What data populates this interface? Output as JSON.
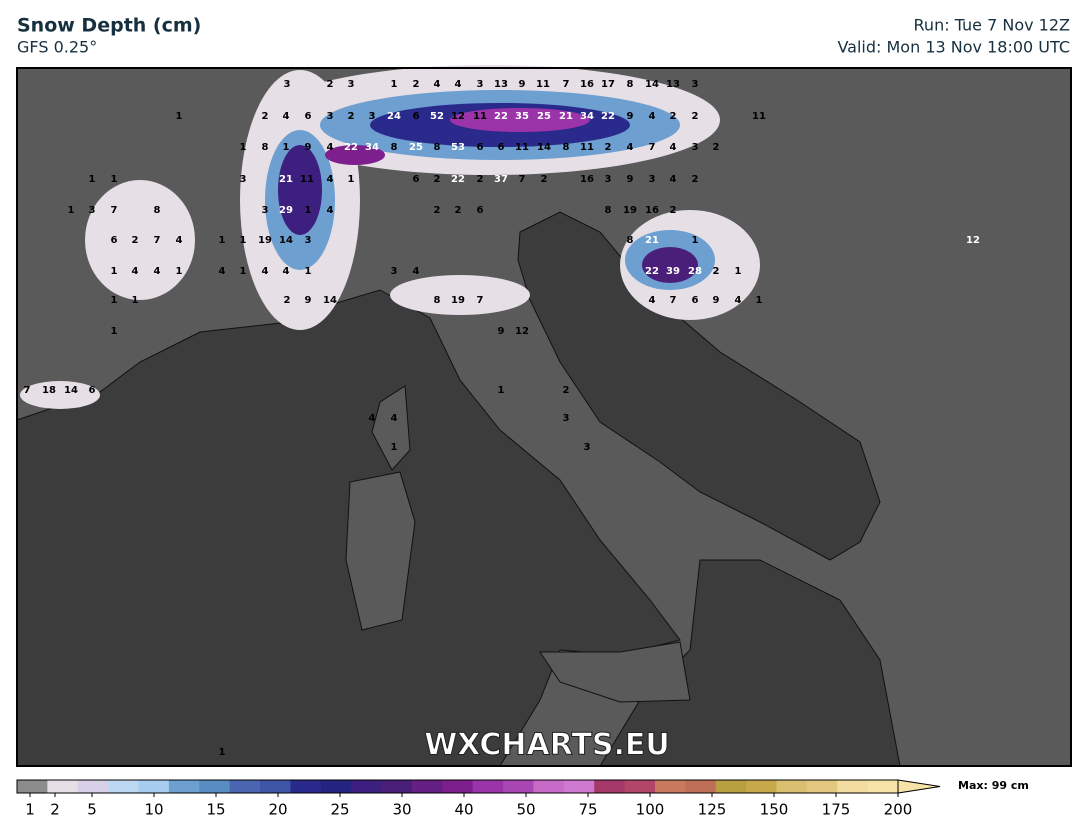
{
  "header": {
    "title": "Snow Depth (cm)",
    "subtitle": "GFS 0.25°",
    "run": "Run: Tue 7 Nov 12Z",
    "valid": "Valid: Mon 13 Nov 18:00 UTC"
  },
  "watermark": "WXCHARTS.EU",
  "map_labels": [
    [
      3,
      2,
      3,
      1,
      2,
      4,
      4,
      3,
      13,
      9,
      11,
      7,
      16,
      17,
      8,
      14,
      13,
      3
    ],
    [
      1,
      2,
      4,
      6,
      3,
      2,
      3,
      24,
      6,
      52,
      12,
      11,
      22,
      35,
      25,
      21,
      34,
      22,
      9,
      4,
      2,
      2,
      11
    ],
    [
      1,
      8,
      1,
      9,
      4,
      22,
      34,
      8,
      25,
      8,
      53,
      6,
      6,
      11,
      14,
      8,
      11,
      2,
      4,
      7,
      4,
      3,
      2
    ],
    [
      1,
      1,
      3,
      21,
      11,
      4,
      1,
      6,
      2,
      22,
      2,
      37,
      7,
      2,
      16,
      3,
      9,
      3,
      4,
      2
    ],
    [
      1,
      3,
      7,
      8,
      3,
      29,
      1,
      4,
      2,
      2,
      6,
      8,
      19,
      16,
      2
    ],
    [
      6,
      2,
      7,
      4,
      1,
      1,
      19,
      14,
      3,
      8,
      21,
      1,
      12
    ],
    [
      1,
      4,
      4,
      1,
      4,
      1,
      4,
      4,
      1,
      3,
      4,
      22,
      39,
      28,
      2,
      1
    ],
    [
      1,
      1,
      2,
      9,
      14,
      8,
      19,
      7,
      4,
      7,
      6,
      9,
      4,
      1
    ],
    [
      1,
      9,
      12
    ],
    [
      7,
      18,
      14,
      6,
      1,
      2
    ],
    [
      4,
      4,
      3
    ],
    [
      1,
      3
    ],
    [
      1
    ]
  ],
  "colorbar": {
    "ticks": [
      1,
      2,
      5,
      10,
      15,
      20,
      25,
      30,
      40,
      50,
      75,
      100,
      125,
      150,
      175,
      200
    ],
    "colors": [
      "#8c8c8c",
      "#e6dfe6",
      "#d7d0e6",
      "#bcd8f2",
      "#a6cdef",
      "#6d9fd0",
      "#5a8cc4",
      "#4a66b0",
      "#3f55a5",
      "#2a2a8c",
      "#232380",
      "#3d1f80",
      "#4a1f7a",
      "#651f85",
      "#7d1f8c",
      "#9a34a8",
      "#a846b4",
      "#c76ac8",
      "#cf7ad0",
      "#a53a6a",
      "#b24668",
      "#c97a5e",
      "#bf6e58",
      "#b8a040",
      "#c7a94a",
      "#d9bf70",
      "#e2c780",
      "#f2dca0",
      "#f7e3a8"
    ],
    "max_label": "Max: 99 cm"
  }
}
